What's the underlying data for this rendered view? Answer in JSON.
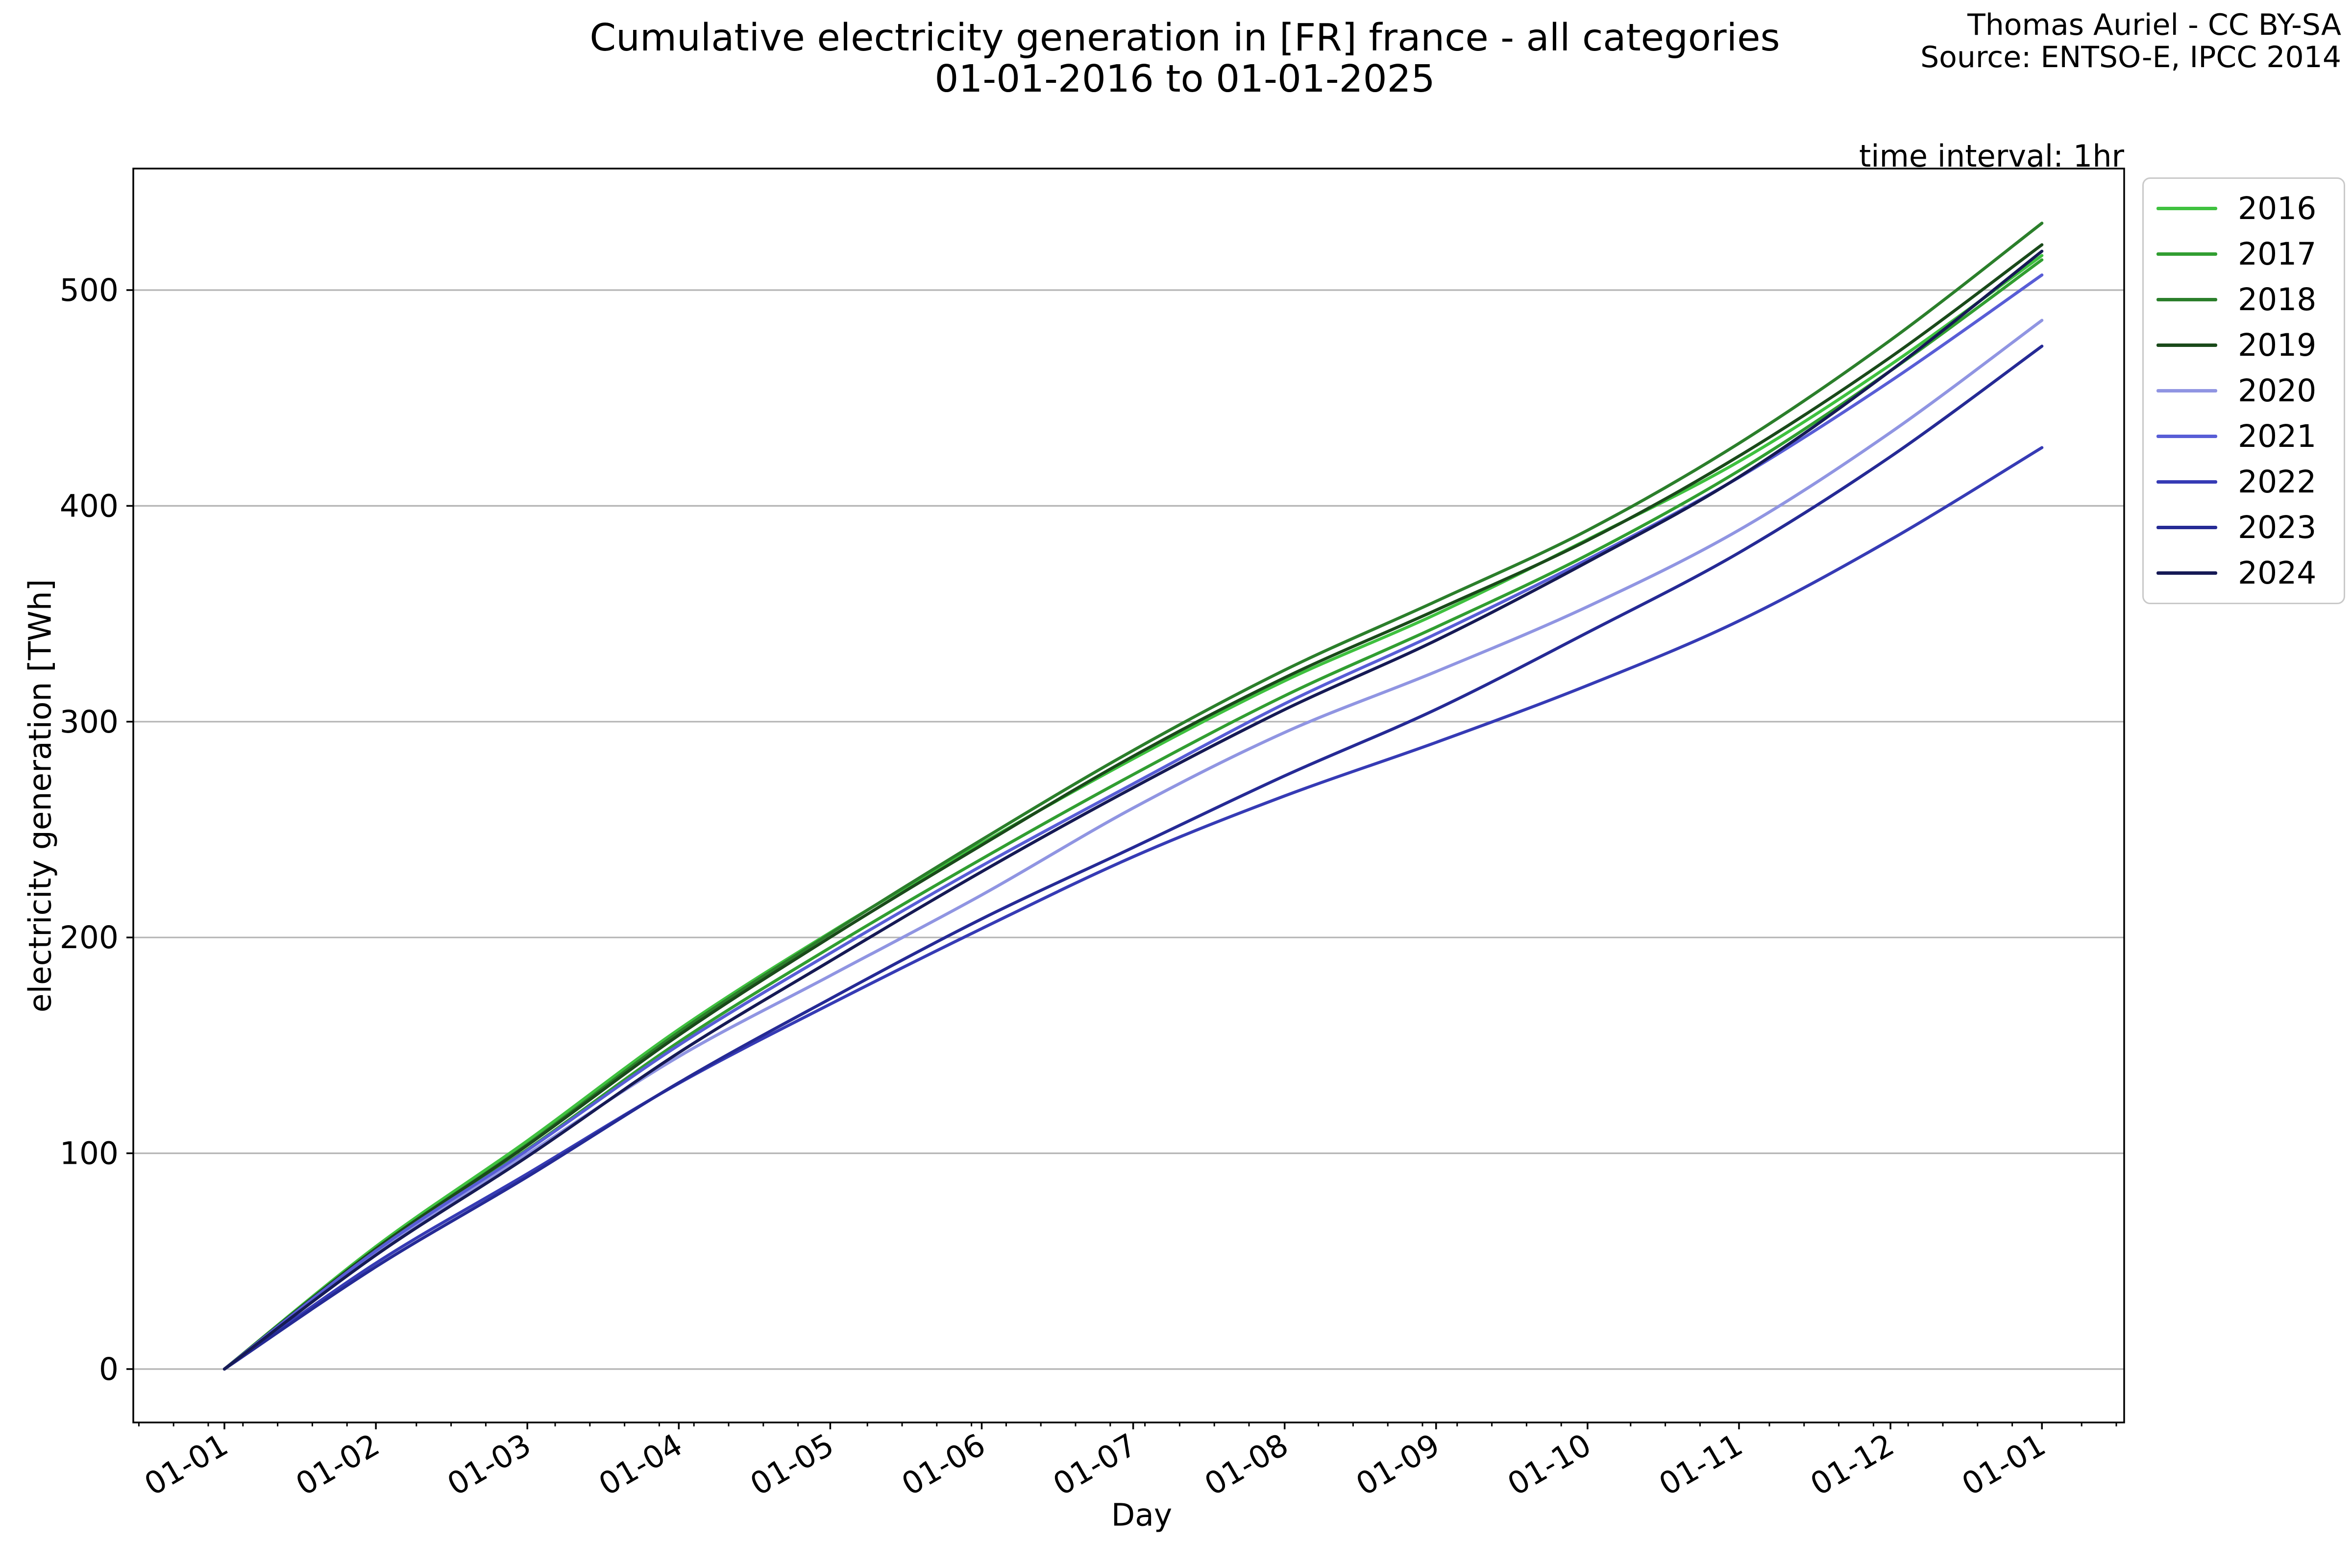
{
  "figure": {
    "title_line1": "Cumulative electricity generation in [FR] france - all categories",
    "title_line2": "01-01-2016 to 01-01-2025",
    "attribution_line1": "Thomas Auriel - CC BY-SA",
    "attribution_line2": "Source: ENTSO-E, IPCC 2014",
    "plot_note": "time interval: 1hr"
  },
  "chart_data": {
    "type": "line",
    "title": "Cumulative electricity generation in [FR] france - all categories 01-01-2016 to 01-01-2025",
    "xlabel": "Day",
    "ylabel": "electricity generation [TWh]",
    "units": "TWh",
    "x_tick_labels": [
      "01-01",
      "01-02",
      "01-03",
      "01-04",
      "01-05",
      "01-06",
      "01-07",
      "01-08",
      "01-09",
      "01-10",
      "01-11",
      "01-12",
      "01-01"
    ],
    "x_tick_rotation_deg": 30,
    "minor_ticks": "weekly",
    "y_ticks": [
      0,
      100,
      200,
      300,
      400,
      500
    ],
    "ylim": [
      -25,
      556
    ],
    "grid": "horizontal-only",
    "grid_color": "#b5b5b5",
    "axis_color": "#000000",
    "legend_position": "outside-right-top",
    "series": [
      {
        "name": "2016",
        "color": "#3fc13f",
        "values": [
          0,
          56.8,
          105.8,
          157.4,
          202.3,
          243.6,
          282.8,
          318.9,
          349.8,
          384.4,
          420.6,
          465.4,
          516
        ]
      },
      {
        "name": "2017",
        "color": "#319e31",
        "values": [
          0,
          55.0,
          101.8,
          151.6,
          195.3,
          236.4,
          275.5,
          312.0,
          343.8,
          377.3,
          416.3,
          462.6,
          514
        ]
      },
      {
        "name": "2018",
        "color": "#2b7f2b",
        "values": [
          0,
          55.8,
          104.1,
          156.1,
          201.8,
          245.3,
          286.7,
          323.9,
          355.8,
          388.7,
          429.0,
          476.8,
          531
        ]
      },
      {
        "name": "2019",
        "color": "#1a4a1a",
        "values": [
          0,
          55.7,
          103.7,
          154.7,
          200.1,
          242.8,
          284.0,
          320.4,
          351.7,
          384.0,
          423.1,
          468.9,
          521
        ]
      },
      {
        "name": "2020",
        "color": "#9095e2",
        "values": [
          0,
          53.5,
          99.6,
          144.8,
          182.3,
          219.7,
          260.0,
          295.0,
          323.2,
          353.3,
          388.8,
          434.0,
          486
        ]
      },
      {
        "name": "2021",
        "color": "#585dd6",
        "values": [
          0,
          54.8,
          101.4,
          150.1,
          192.7,
          233.2,
          271.2,
          308.3,
          340.7,
          375.2,
          413.2,
          457.8,
          507
        ]
      },
      {
        "name": "2022",
        "color": "#363bb5",
        "values": [
          0,
          49.1,
          90.5,
          132.4,
          169.1,
          204.1,
          237.4,
          265.6,
          290.4,
          316.8,
          346.7,
          384.3,
          427
        ]
      },
      {
        "name": "2023",
        "color": "#252a95",
        "values": [
          0,
          47.4,
          89.1,
          132.7,
          171.6,
          208.6,
          241.7,
          274.9,
          305.7,
          341.3,
          378.3,
          422.8,
          474
        ]
      },
      {
        "name": "2024",
        "color": "#161a55",
        "values": [
          0,
          52.8,
          98.4,
          146.6,
          189.1,
          230.5,
          269.4,
          305.6,
          337.7,
          374.0,
          413.4,
          462.6,
          518
        ]
      }
    ],
    "annual_totals_twh": {
      "2016": 516,
      "2017": 514,
      "2018": 531,
      "2019": 521,
      "2020": 486,
      "2021": 507,
      "2022": 427,
      "2023": 474,
      "2024": 518
    }
  }
}
